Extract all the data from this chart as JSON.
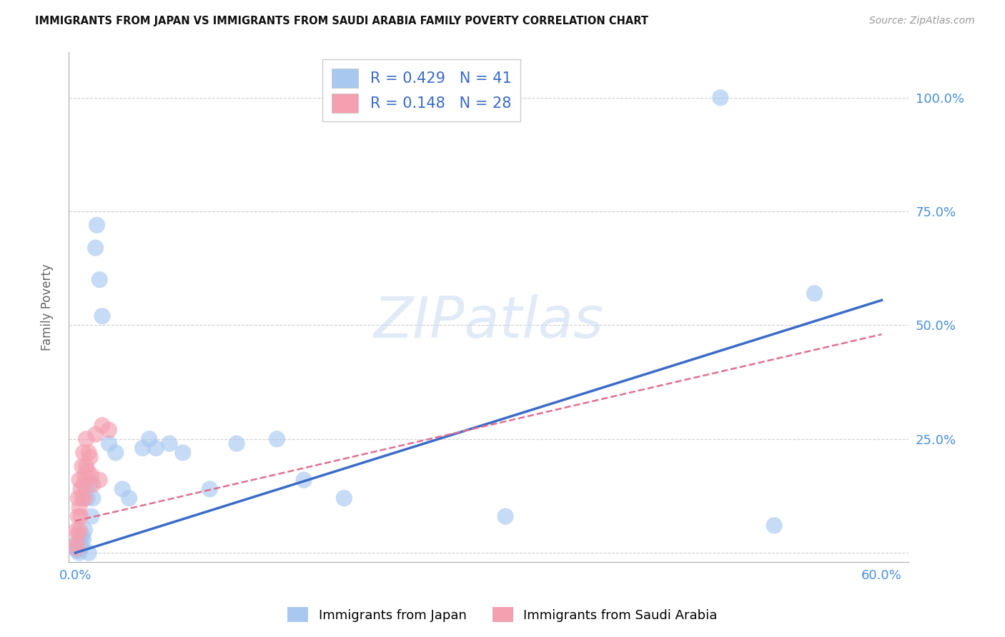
{
  "title": "IMMIGRANTS FROM JAPAN VS IMMIGRANTS FROM SAUDI ARABIA FAMILY POVERTY CORRELATION CHART",
  "source": "Source: ZipAtlas.com",
  "xlabel_ticks": [
    0.0,
    0.1,
    0.2,
    0.3,
    0.4,
    0.5,
    0.6
  ],
  "xlabel_labels": [
    "0.0%",
    "",
    "",
    "",
    "",
    "",
    "60.0%"
  ],
  "ylabel_ticks": [
    0.0,
    0.25,
    0.5,
    0.75,
    1.0
  ],
  "ylabel_labels": [
    "",
    "25.0%",
    "50.0%",
    "75.0%",
    "100.0%"
  ],
  "xlim": [
    -0.005,
    0.62
  ],
  "ylim": [
    -0.02,
    1.1
  ],
  "watermark": "ZIPatlas",
  "japan_color": "#a8c8f0",
  "saudi_color": "#f4a0b0",
  "japan_line_color": "#3a6bc8",
  "saudi_line_color": "#e07090",
  "R_japan": 0.429,
  "N_japan": 41,
  "R_saudi": 0.148,
  "N_saudi": 28,
  "japan_x": [
    0.001,
    0.001,
    0.002,
    0.002,
    0.003,
    0.003,
    0.003,
    0.004,
    0.004,
    0.005,
    0.005,
    0.006,
    0.007,
    0.008,
    0.009,
    0.01,
    0.011,
    0.012,
    0.013,
    0.015,
    0.016,
    0.018,
    0.02,
    0.025,
    0.03,
    0.035,
    0.04,
    0.05,
    0.055,
    0.06,
    0.07,
    0.08,
    0.1,
    0.12,
    0.15,
    0.17,
    0.2,
    0.32,
    0.48,
    0.52,
    0.55
  ],
  "japan_y": [
    0.005,
    0.02,
    0.01,
    0.005,
    0.02,
    0.01,
    0.0,
    0.03,
    0.01,
    0.04,
    0.015,
    0.03,
    0.05,
    0.14,
    0.12,
    0.0,
    0.15,
    0.08,
    0.12,
    0.67,
    0.72,
    0.6,
    0.52,
    0.24,
    0.22,
    0.14,
    0.12,
    0.23,
    0.25,
    0.23,
    0.24,
    0.22,
    0.14,
    0.24,
    0.25,
    0.16,
    0.12,
    0.08,
    1.0,
    0.06,
    0.57
  ],
  "saudi_x": [
    0.001,
    0.001,
    0.001,
    0.002,
    0.002,
    0.002,
    0.003,
    0.003,
    0.003,
    0.004,
    0.004,
    0.005,
    0.005,
    0.006,
    0.006,
    0.007,
    0.007,
    0.008,
    0.008,
    0.009,
    0.01,
    0.011,
    0.012,
    0.013,
    0.015,
    0.018,
    0.02,
    0.025
  ],
  "saudi_y": [
    0.01,
    0.05,
    0.02,
    0.08,
    0.12,
    0.04,
    0.16,
    0.1,
    0.05,
    0.14,
    0.08,
    0.19,
    0.12,
    0.22,
    0.15,
    0.17,
    0.12,
    0.25,
    0.19,
    0.18,
    0.22,
    0.21,
    0.17,
    0.15,
    0.26,
    0.16,
    0.28,
    0.27
  ],
  "japan_line_x0": 0.0,
  "japan_line_y0": 0.0,
  "japan_line_x1": 0.6,
  "japan_line_y1": 0.555,
  "saudi_line_x0": 0.0,
  "saudi_line_y0": 0.07,
  "saudi_line_x1": 0.6,
  "saudi_line_y1": 0.48
}
